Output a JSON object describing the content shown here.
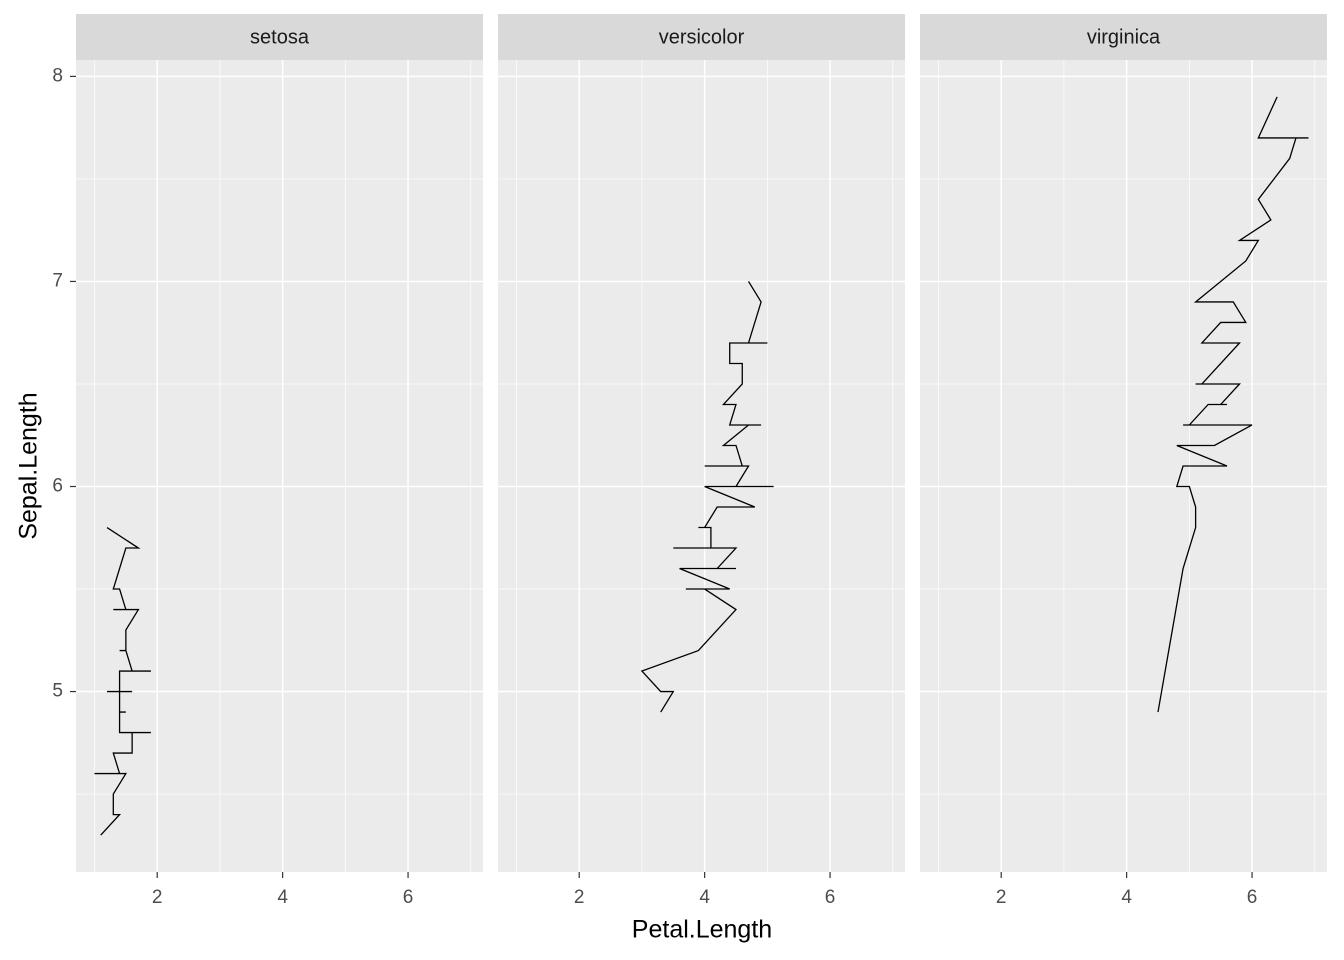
{
  "chart_data": {
    "type": "line",
    "xlabel": "Petal.Length",
    "ylabel": "Sepal.Length",
    "color": "#000000",
    "grid": true,
    "xlim": [
      0.705,
      7.195
    ],
    "ylim": [
      4.12,
      8.08
    ],
    "xticks": [
      2,
      4,
      6
    ],
    "yticks": [
      5,
      6,
      7,
      8
    ],
    "xminor": [
      1,
      3,
      5,
      7
    ],
    "yminor": [
      4.5,
      5.5,
      6.5,
      7.5
    ],
    "panels": [
      {
        "title": "setosa",
        "y": [
          4.3,
          4.4,
          4.4,
          4.4,
          4.5,
          4.6,
          4.6,
          4.6,
          4.6,
          4.7,
          4.7,
          4.8,
          4.8,
          4.8,
          4.8,
          4.8,
          4.9,
          4.9,
          4.9,
          4.9,
          5.0,
          5.0,
          5.0,
          5.0,
          5.0,
          5.0,
          5.0,
          5.0,
          5.1,
          5.1,
          5.1,
          5.1,
          5.1,
          5.1,
          5.1,
          5.1,
          5.2,
          5.2,
          5.2,
          5.3,
          5.4,
          5.4,
          5.4,
          5.4,
          5.4,
          5.5,
          5.5,
          5.7,
          5.7,
          5.8
        ],
        "x": [
          1.1,
          1.4,
          1.3,
          1.3,
          1.3,
          1.5,
          1.4,
          1.0,
          1.4,
          1.3,
          1.6,
          1.6,
          1.4,
          1.9,
          1.6,
          1.4,
          1.4,
          1.5,
          1.5,
          1.4,
          1.4,
          1.5,
          1.6,
          1.6,
          1.2,
          1.3,
          1.6,
          1.4,
          1.4,
          1.4,
          1.5,
          1.5,
          1.7,
          1.5,
          1.9,
          1.6,
          1.5,
          1.4,
          1.5,
          1.5,
          1.7,
          1.5,
          1.3,
          1.7,
          1.5,
          1.4,
          1.3,
          1.5,
          1.7,
          1.2
        ]
      },
      {
        "title": "versicolor",
        "y": [
          4.9,
          5.0,
          5.0,
          5.1,
          5.2,
          5.4,
          5.5,
          5.5,
          5.5,
          5.5,
          5.5,
          5.6,
          5.6,
          5.6,
          5.6,
          5.6,
          5.7,
          5.7,
          5.7,
          5.7,
          5.7,
          5.8,
          5.8,
          5.8,
          5.9,
          5.9,
          6.0,
          6.0,
          6.0,
          6.0,
          6.1,
          6.1,
          6.1,
          6.1,
          6.2,
          6.2,
          6.3,
          6.3,
          6.3,
          6.4,
          6.4,
          6.5,
          6.6,
          6.6,
          6.7,
          6.7,
          6.7,
          6.8,
          6.9,
          7.0
        ],
        "x": [
          3.3,
          3.5,
          3.3,
          3.0,
          3.9,
          4.5,
          4.0,
          3.8,
          3.7,
          4.0,
          4.4,
          3.6,
          4.5,
          3.9,
          4.1,
          4.2,
          4.5,
          3.5,
          4.2,
          4.2,
          4.1,
          4.1,
          3.9,
          4.0,
          4.2,
          4.8,
          4.0,
          4.5,
          5.1,
          4.5,
          4.7,
          4.0,
          4.7,
          4.6,
          4.5,
          4.3,
          4.7,
          4.9,
          4.4,
          4.5,
          4.3,
          4.6,
          4.6,
          4.4,
          4.4,
          5.0,
          4.7,
          4.8,
          4.9,
          4.7
        ]
      },
      {
        "title": "virginica",
        "y": [
          4.9,
          5.6,
          5.7,
          5.8,
          5.8,
          5.8,
          5.9,
          6.0,
          6.0,
          6.1,
          6.1,
          6.2,
          6.2,
          6.3,
          6.3,
          6.3,
          6.3,
          6.3,
          6.3,
          6.4,
          6.4,
          6.4,
          6.4,
          6.4,
          6.5,
          6.5,
          6.5,
          6.5,
          6.7,
          6.7,
          6.7,
          6.7,
          6.7,
          6.8,
          6.8,
          6.9,
          6.9,
          6.9,
          7.1,
          7.2,
          7.2,
          7.2,
          7.3,
          7.4,
          7.6,
          7.7,
          7.7,
          7.7,
          7.7,
          7.9
        ],
        "x": [
          4.5,
          4.9,
          5.0,
          5.1,
          5.1,
          5.1,
          5.1,
          5.0,
          4.8,
          4.9,
          5.6,
          4.8,
          5.4,
          6.0,
          5.6,
          4.9,
          5.1,
          5.6,
          5.0,
          5.3,
          5.3,
          5.6,
          5.6,
          5.5,
          5.8,
          5.1,
          5.5,
          5.2,
          5.8,
          5.7,
          5.6,
          5.7,
          5.2,
          5.5,
          5.9,
          5.7,
          5.4,
          5.1,
          5.9,
          6.1,
          6.0,
          5.8,
          6.3,
          6.1,
          6.6,
          6.7,
          6.9,
          6.7,
          6.1,
          6.4
        ]
      }
    ]
  }
}
